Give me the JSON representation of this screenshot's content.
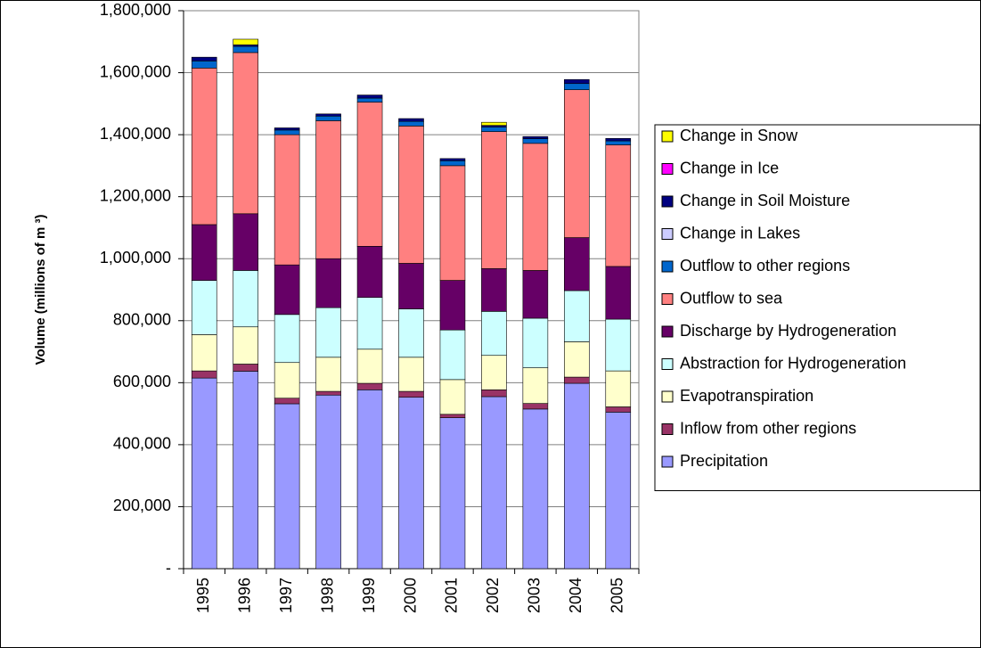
{
  "chart_data": {
    "type": "stacked_bar",
    "y_label": "Volume (millions of m ³)",
    "categories": [
      "1995",
      "1996",
      "1997",
      "1998",
      "1999",
      "2000",
      "2001",
      "2002",
      "2003",
      "2004",
      "2005"
    ],
    "series": [
      {
        "name": "Precipitation",
        "color": "#9999ff",
        "values": [
          615000,
          637000,
          532000,
          560000,
          577000,
          553000,
          487000,
          555000,
          515000,
          598000,
          505000
        ]
      },
      {
        "name": "Inflow from other regions",
        "color": "#993366",
        "values": [
          23000,
          23000,
          18000,
          12000,
          21000,
          19000,
          11000,
          22000,
          18000,
          20000,
          17000
        ]
      },
      {
        "name": "Evapotranspiration",
        "color": "#ffffcc",
        "values": [
          117000,
          120000,
          115000,
          110000,
          110000,
          110000,
          112000,
          111000,
          115000,
          114000,
          116000
        ]
      },
      {
        "name": "Abstraction for Hydrogeneration",
        "color": "#ccffff",
        "values": [
          175000,
          182000,
          155000,
          160000,
          167000,
          156000,
          160000,
          142000,
          160000,
          165000,
          167000
        ]
      },
      {
        "name": "Discharge by Hydrogeneration",
        "color": "#660066",
        "values": [
          180000,
          183000,
          160000,
          158000,
          165000,
          147000,
          160000,
          138000,
          154000,
          171000,
          170000
        ]
      },
      {
        "name": "Outflow to sea",
        "color": "#ff8080",
        "values": [
          505000,
          520000,
          420000,
          445000,
          465000,
          443000,
          370000,
          442000,
          410000,
          477000,
          392000
        ]
      },
      {
        "name": "Outflow to other regions",
        "color": "#0066cc",
        "values": [
          23000,
          20000,
          15000,
          15000,
          13000,
          15000,
          16000,
          15000,
          15000,
          20000,
          13000
        ]
      },
      {
        "name": "Change in Lakes",
        "color": "#ccccff",
        "values": [
          0,
          0,
          0,
          0,
          0,
          0,
          0,
          0,
          0,
          0,
          0
        ]
      },
      {
        "name": "Change in Soil Moisture",
        "color": "#000080",
        "values": [
          12000,
          5000,
          7000,
          7000,
          10000,
          9000,
          7000,
          5000,
          7000,
          13000,
          8000
        ]
      },
      {
        "name": "Change in Ice",
        "color": "#ff00ff",
        "values": [
          0,
          0,
          0,
          0,
          0,
          0,
          0,
          0,
          0,
          0,
          0
        ]
      },
      {
        "name": "Change in Snow",
        "color": "#ffff00",
        "values": [
          0,
          18000,
          0,
          0,
          0,
          0,
          0,
          10000,
          0,
          0,
          0
        ]
      }
    ],
    "ylim": [
      0,
      1800000
    ],
    "yticks": [
      {
        "value": 0,
        "label": "-"
      },
      {
        "value": 200000,
        "label": "200,000"
      },
      {
        "value": 400000,
        "label": "400,000"
      },
      {
        "value": 600000,
        "label": "600,000"
      },
      {
        "value": 800000,
        "label": "800,000"
      },
      {
        "value": 1000000,
        "label": "1,000,000"
      },
      {
        "value": 1200000,
        "label": "1,200,000"
      },
      {
        "value": 1400000,
        "label": "1,400,000"
      },
      {
        "value": 1600000,
        "label": "1,600,000"
      },
      {
        "value": 1800000,
        "label": "1,800,000"
      }
    ],
    "grid": true,
    "legend": "right"
  }
}
